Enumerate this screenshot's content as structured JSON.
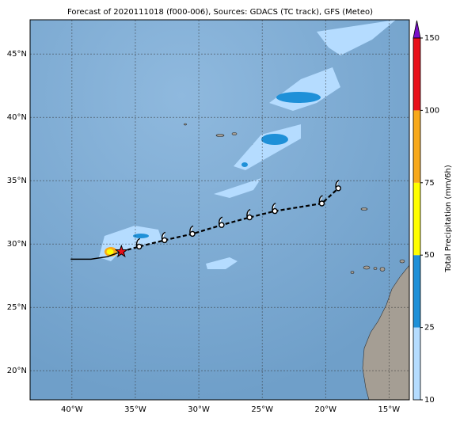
{
  "chart_data": {
    "type": "map",
    "title": "Forecast of 2020111018 (f000-006), Sources: GDACS (TC track), GFS (Meteo)",
    "xlim": [
      -43.3,
      -13.4
    ],
    "ylim": [
      17.7,
      47.7
    ],
    "xticks": [
      {
        "value": -40,
        "label": "40°W"
      },
      {
        "value": -35,
        "label": "35°W"
      },
      {
        "value": -30,
        "label": "30°W"
      },
      {
        "value": -25,
        "label": "25°W"
      },
      {
        "value": -20,
        "label": "20°W"
      },
      {
        "value": -15,
        "label": "15°W"
      }
    ],
    "yticks": [
      {
        "value": 20,
        "label": "20°N"
      },
      {
        "value": 25,
        "label": "25°N"
      },
      {
        "value": 30,
        "label": "30°N"
      },
      {
        "value": 35,
        "label": "35°N"
      },
      {
        "value": 40,
        "label": "40°N"
      },
      {
        "value": 45,
        "label": "45°N"
      }
    ],
    "grid": true,
    "track": {
      "past": {
        "lon": [
          -40.1,
          -38.5,
          -37.2,
          -36.1
        ],
        "lat": [
          28.8,
          28.8,
          29.0,
          29.4
        ]
      },
      "current": {
        "lon": -36.1,
        "lat": 29.4
      },
      "forecast": {
        "lon": [
          -36.1,
          -34.7,
          -32.7,
          -30.5,
          -28.2,
          -26.0,
          -24.0,
          -20.3,
          -19.0
        ],
        "lat": [
          29.4,
          29.8,
          30.3,
          30.8,
          31.5,
          32.1,
          32.6,
          33.2,
          34.4
        ]
      }
    },
    "colorbar": {
      "label": "Total Precipitation (mm/6h)",
      "ticks": [
        10,
        25,
        50,
        75,
        100,
        150
      ],
      "colors": [
        "#b5dcff",
        "#1e90d8",
        "#ffff00",
        "#f7a81b",
        "#e8101a"
      ],
      "extend_color": "#7a10c8"
    }
  }
}
